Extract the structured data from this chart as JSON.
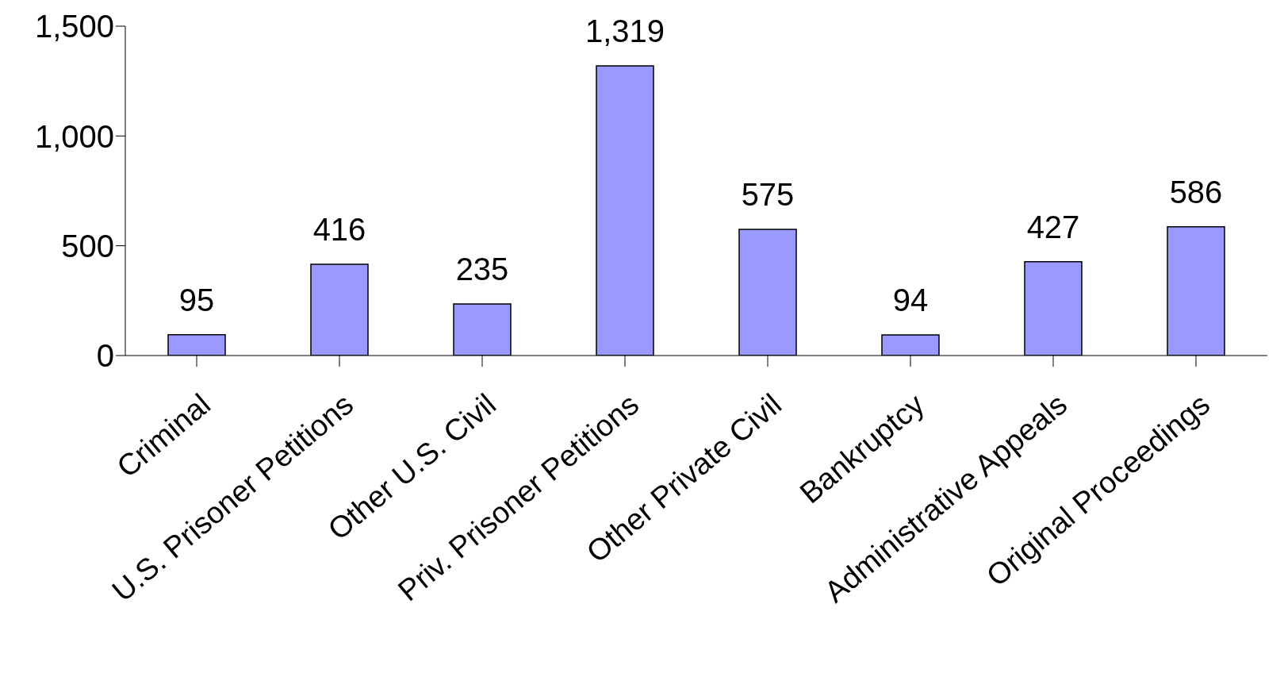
{
  "chart_data": {
    "type": "bar",
    "categories": [
      "Criminal",
      "U.S. Prisoner Petitions",
      "Other U.S. Civil",
      "Priv. Prisoner Petitions",
      "Other Private Civil",
      "Bankruptcy",
      "Administrative Appeals",
      "Original Proceedings"
    ],
    "values": [
      95,
      416,
      235,
      1319,
      575,
      94,
      427,
      586
    ],
    "value_labels": [
      "95",
      "416",
      "235",
      "1,319",
      "575",
      "94",
      "427",
      "586"
    ],
    "color": "#9999ff",
    "ylim": [
      0,
      1500
    ],
    "yticks": [
      0,
      {
        "value": 500,
        "label": "500"
      },
      {
        "value": 1000,
        "label": "1,000"
      },
      {
        "value": 1500,
        "label": "1,500"
      }
    ],
    "grid": false,
    "legend": false
  }
}
